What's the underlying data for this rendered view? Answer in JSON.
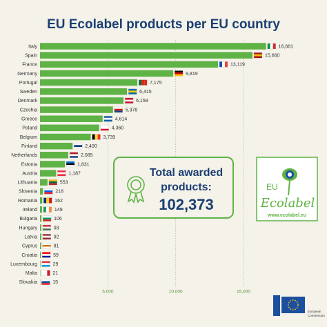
{
  "chart_data": {
    "type": "bar",
    "orientation": "horizontal",
    "title": "EU Ecolabel products per EU country",
    "categories": [
      "Italy",
      "Spain",
      "France",
      "Germany",
      "Portugal",
      "Sweden",
      "Denmark",
      "Czechia",
      "Greece",
      "Poland",
      "Belgium",
      "Finland",
      "Netherlands",
      "Estonia",
      "Austria",
      "Lithuania",
      "Slovenia",
      "Romania",
      "Ireland",
      "Bulgaria",
      "Hungary",
      "Latvia",
      "Cyprus",
      "Croatia",
      "Luxembourg",
      "Malta",
      "Slovakia"
    ],
    "values": [
      16661,
      15660,
      13119,
      9819,
      7175,
      6415,
      6158,
      5378,
      4614,
      4360,
      3739,
      2400,
      2085,
      1831,
      1187,
      553,
      218,
      162,
      149,
      106,
      93,
      92,
      81,
      59,
      29,
      21,
      15
    ],
    "value_labels": [
      "16,661",
      "15,660",
      "13,119",
      "9,819",
      "7,175",
      "6,415",
      "6,158",
      "5,378",
      "4,614",
      "4,360",
      "3,739",
      "2,400",
      "2,085",
      "1,831",
      "1,187",
      "553",
      "218",
      "162",
      "149",
      "106",
      "93",
      "92",
      "81",
      "59",
      "29",
      "21",
      "15"
    ],
    "color": "#5fb346",
    "xlim": [
      0,
      18000
    ],
    "xticks": [
      {
        "value": 5000,
        "label": "5,000"
      },
      {
        "value": 10000,
        "label": "10,000"
      },
      {
        "value": 15000,
        "label": "15,000"
      }
    ],
    "grid": true,
    "annotations": {
      "total_lines": [
        "Total awarded",
        "products:"
      ],
      "total": "102,373",
      "logo_eu": "EU",
      "logo_name": "Ecolabel",
      "logo_url": "www.ecolabel.eu",
      "commission": [
        "European",
        "Commission"
      ]
    }
  }
}
